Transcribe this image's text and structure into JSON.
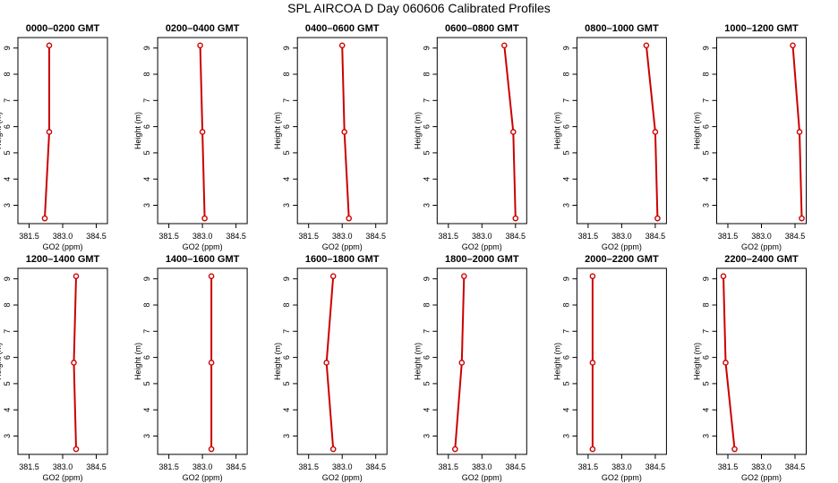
{
  "page_title": "SPL AIRCOA D  Day 060606  Calibrated Profiles",
  "chart_data": [
    {
      "type": "line",
      "title": "0000–0200 GMT",
      "xlabel": "GO2 (ppm)",
      "ylabel": "Height (m)",
      "xlim": [
        381.0,
        385.0
      ],
      "ylim": [
        2.3,
        9.4
      ],
      "xticks": [
        "381.5",
        "383.0",
        "384.5"
      ],
      "yticks": [
        "3",
        "4",
        "5",
        "6",
        "7",
        "8",
        "9"
      ],
      "color": "#cc0000",
      "series": [
        {
          "x": [
            382.2,
            382.4,
            382.4
          ],
          "y": [
            2.5,
            5.8,
            9.1
          ]
        }
      ]
    },
    {
      "type": "line",
      "title": "0200–0400 GMT",
      "xlabel": "GO2 (ppm)",
      "ylabel": "Height (m)",
      "xlim": [
        381.0,
        385.0
      ],
      "ylim": [
        2.3,
        9.4
      ],
      "xticks": [
        "381.5",
        "383.0",
        "384.5"
      ],
      "yticks": [
        "3",
        "4",
        "5",
        "6",
        "7",
        "8",
        "9"
      ],
      "color": "#cc0000",
      "series": [
        {
          "x": [
            383.1,
            383.0,
            382.9
          ],
          "y": [
            2.5,
            5.8,
            9.1
          ]
        }
      ]
    },
    {
      "type": "line",
      "title": "0400–0600 GMT",
      "xlabel": "GO2 (ppm)",
      "ylabel": "Height (m)",
      "xlim": [
        381.0,
        385.0
      ],
      "ylim": [
        2.3,
        9.4
      ],
      "xticks": [
        "381.5",
        "383.0",
        "384.5"
      ],
      "yticks": [
        "3",
        "4",
        "5",
        "6",
        "7",
        "8",
        "9"
      ],
      "color": "#cc0000",
      "series": [
        {
          "x": [
            383.3,
            383.1,
            383.0
          ],
          "y": [
            2.5,
            5.8,
            9.1
          ]
        }
      ]
    },
    {
      "type": "line",
      "title": "0600–0800 GMT",
      "xlabel": "GO2 (ppm)",
      "ylabel": "Height (m)",
      "xlim": [
        381.0,
        385.0
      ],
      "ylim": [
        2.3,
        9.4
      ],
      "xticks": [
        "381.5",
        "383.0",
        "384.5"
      ],
      "yticks": [
        "3",
        "4",
        "5",
        "6",
        "7",
        "8",
        "9"
      ],
      "color": "#cc0000",
      "series": [
        {
          "x": [
            384.5,
            384.4,
            384.0
          ],
          "y": [
            2.5,
            5.8,
            9.1
          ]
        }
      ]
    },
    {
      "type": "line",
      "title": "0800–1000 GMT",
      "xlabel": "GO2 (ppm)",
      "ylabel": "Height (m)",
      "xlim": [
        381.0,
        385.0
      ],
      "ylim": [
        2.3,
        9.4
      ],
      "xticks": [
        "381.5",
        "383.0",
        "384.5"
      ],
      "yticks": [
        "3",
        "4",
        "5",
        "6",
        "7",
        "8",
        "9"
      ],
      "color": "#cc0000",
      "series": [
        {
          "x": [
            384.6,
            384.5,
            384.1
          ],
          "y": [
            2.5,
            5.8,
            9.1
          ]
        }
      ]
    },
    {
      "type": "line",
      "title": "1000–1200 GMT",
      "xlabel": "GO2 (ppm)",
      "ylabel": "Height (m)",
      "xlim": [
        381.0,
        385.0
      ],
      "ylim": [
        2.3,
        9.4
      ],
      "xticks": [
        "381.5",
        "383.0",
        "384.5"
      ],
      "yticks": [
        "3",
        "4",
        "5",
        "6",
        "7",
        "8",
        "9"
      ],
      "color": "#cc0000",
      "series": [
        {
          "x": [
            384.8,
            384.7,
            384.4
          ],
          "y": [
            2.5,
            5.8,
            9.1
          ]
        }
      ]
    },
    {
      "type": "line",
      "title": "1200–1400 GMT",
      "xlabel": "GO2 (ppm)",
      "ylabel": "Height (m)",
      "xlim": [
        381.0,
        385.0
      ],
      "ylim": [
        2.3,
        9.4
      ],
      "xticks": [
        "381.5",
        "383.0",
        "384.5"
      ],
      "yticks": [
        "3",
        "4",
        "5",
        "6",
        "7",
        "8",
        "9"
      ],
      "color": "#cc0000",
      "series": [
        {
          "x": [
            383.6,
            383.5,
            383.6
          ],
          "y": [
            2.5,
            5.8,
            9.1
          ]
        }
      ]
    },
    {
      "type": "line",
      "title": "1400–1600 GMT",
      "xlabel": "GO2 (ppm)",
      "ylabel": "Height (m)",
      "xlim": [
        381.0,
        385.0
      ],
      "ylim": [
        2.3,
        9.4
      ],
      "xticks": [
        "381.5",
        "383.0",
        "384.5"
      ],
      "yticks": [
        "3",
        "4",
        "5",
        "6",
        "7",
        "8",
        "9"
      ],
      "color": "#cc0000",
      "series": [
        {
          "x": [
            383.4,
            383.4,
            383.4
          ],
          "y": [
            2.5,
            5.8,
            9.1
          ]
        }
      ]
    },
    {
      "type": "line",
      "title": "1600–1800 GMT",
      "xlabel": "GO2 (ppm)",
      "ylabel": "Height (m)",
      "xlim": [
        381.0,
        385.0
      ],
      "ylim": [
        2.3,
        9.4
      ],
      "xticks": [
        "381.5",
        "383.0",
        "384.5"
      ],
      "yticks": [
        "3",
        "4",
        "5",
        "6",
        "7",
        "8",
        "9"
      ],
      "color": "#cc0000",
      "series": [
        {
          "x": [
            382.6,
            382.3,
            382.6
          ],
          "y": [
            2.5,
            5.8,
            9.1
          ]
        }
      ]
    },
    {
      "type": "line",
      "title": "1800–2000 GMT",
      "xlabel": "GO2 (ppm)",
      "ylabel": "Height (m)",
      "xlim": [
        381.0,
        385.0
      ],
      "ylim": [
        2.3,
        9.4
      ],
      "xticks": [
        "381.5",
        "383.0",
        "384.5"
      ],
      "yticks": [
        "3",
        "4",
        "5",
        "6",
        "7",
        "8",
        "9"
      ],
      "color": "#cc0000",
      "series": [
        {
          "x": [
            381.8,
            382.1,
            382.2
          ],
          "y": [
            2.5,
            5.8,
            9.1
          ]
        }
      ]
    },
    {
      "type": "line",
      "title": "2000–2200 GMT",
      "xlabel": "GO2 (ppm)",
      "ylabel": "Height (m)",
      "xlim": [
        381.0,
        385.0
      ],
      "ylim": [
        2.3,
        9.4
      ],
      "xticks": [
        "381.5",
        "383.0",
        "384.5"
      ],
      "yticks": [
        "3",
        "4",
        "5",
        "6",
        "7",
        "8",
        "9"
      ],
      "color": "#cc0000",
      "series": [
        {
          "x": [
            381.7,
            381.7,
            381.7
          ],
          "y": [
            2.5,
            5.8,
            9.1
          ]
        }
      ]
    },
    {
      "type": "line",
      "title": "2200–2400 GMT",
      "xlabel": "GO2 (ppm)",
      "ylabel": "Height (m)",
      "xlim": [
        381.0,
        385.0
      ],
      "ylim": [
        2.3,
        9.4
      ],
      "xticks": [
        "381.5",
        "383.0",
        "384.5"
      ],
      "yticks": [
        "3",
        "4",
        "5",
        "6",
        "7",
        "8",
        "9"
      ],
      "color": "#cc0000",
      "series": [
        {
          "x": [
            381.8,
            381.4,
            381.3
          ],
          "y": [
            2.5,
            5.8,
            9.1
          ]
        }
      ]
    }
  ]
}
